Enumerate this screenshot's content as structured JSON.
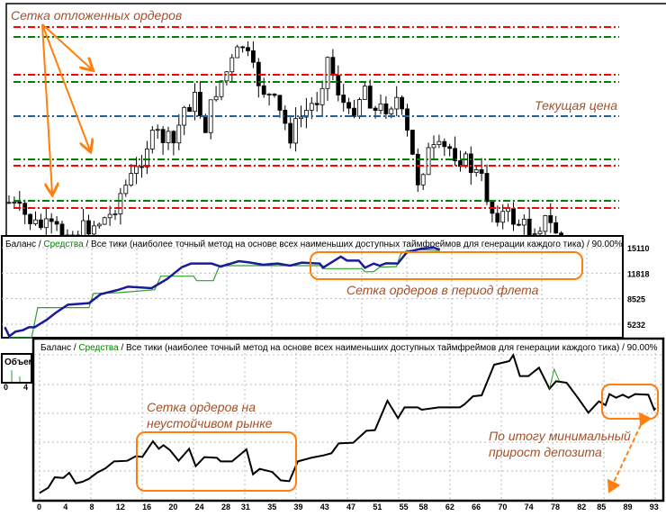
{
  "chart_data": [
    {
      "type": "candlestick",
      "title": "",
      "annotations": {
        "grid_label": "Сетка отложенных ордеров",
        "current_price_label": "Текущая цена"
      },
      "order_levels": [
        {
          "type": "sell",
          "level": 270,
          "color": "#ff0000"
        },
        {
          "type": "buy",
          "level": 259,
          "color": "#008000"
        },
        {
          "type": "sell",
          "level": 217,
          "color": "#ff0000"
        },
        {
          "type": "buy",
          "level": 209,
          "color": "#008000"
        },
        {
          "type": "current",
          "level": 171,
          "color": "#1f5f9f"
        },
        {
          "type": "buy",
          "level": 123,
          "color": "#008000"
        },
        {
          "type": "sell",
          "level": 116,
          "color": "#ff0000"
        },
        {
          "type": "buy",
          "level": 77,
          "color": "#008000"
        },
        {
          "type": "sell",
          "level": 69,
          "color": "#ff0000"
        }
      ],
      "price_path": [
        [
          0,
          75
        ],
        [
          5,
          50
        ],
        [
          12,
          40
        ],
        [
          19,
          60
        ],
        [
          21,
          85
        ],
        [
          24,
          110
        ],
        [
          26,
          140
        ],
        [
          28,
          150
        ],
        [
          31,
          140
        ],
        [
          33,
          180
        ],
        [
          35,
          190
        ],
        [
          37,
          160
        ],
        [
          39,
          200
        ],
        [
          42,
          230
        ],
        [
          44,
          250
        ],
        [
          46,
          220
        ],
        [
          48,
          200
        ],
        [
          50,
          185
        ],
        [
          53,
          150
        ],
        [
          55,
          170
        ],
        [
          58,
          190
        ],
        [
          60,
          235
        ],
        [
          62,
          200
        ],
        [
          64,
          170
        ],
        [
          67,
          205
        ],
        [
          69,
          175
        ],
        [
          73,
          190
        ],
        [
          75,
          150
        ],
        [
          77,
          100
        ],
        [
          79,
          130
        ],
        [
          83,
          135
        ],
        [
          86,
          120
        ],
        [
          89,
          100
        ],
        [
          91,
          65
        ],
        [
          94,
          60
        ],
        [
          98,
          45
        ],
        [
          101,
          55
        ],
        [
          104,
          38
        ]
      ]
    },
    {
      "type": "line",
      "header": {
        "balance": "Баланс",
        "sep1": " / ",
        "equity": "Средства",
        "rest": " / Все тики (наиболее точный метод на основе всех наименьших доступных таймфреймов для генерации каждого тика) / 90.00%"
      },
      "annotation": "Сетка ордеров в период флета",
      "y_ticks": [
        "15110",
        "11818",
        "8525",
        "5232"
      ],
      "y_tick_values": [
        15110,
        11818,
        8525,
        5232
      ],
      "ylim": [
        3300,
        15600
      ],
      "xlim": [
        0,
        100
      ],
      "series": [
        {
          "name": "Баланс",
          "color": "#1a1a9a",
          "points": [
            [
              0.7,
              4844
            ],
            [
              1.7,
              3682
            ],
            [
              3.1,
              4263
            ],
            [
              4.8,
              4457
            ],
            [
              6.2,
              4844
            ],
            [
              7.5,
              4844
            ],
            [
              10.3,
              5812
            ],
            [
              12.3,
              6703
            ],
            [
              15.1,
              7750
            ],
            [
              19.9,
              7943
            ],
            [
              22.6,
              9105
            ],
            [
              26.7,
              9686
            ],
            [
              28.8,
              10074
            ],
            [
              34.2,
              9880
            ],
            [
              37.7,
              11042
            ],
            [
              41.1,
              12592
            ],
            [
              43.2,
              13057
            ],
            [
              47.9,
              13057
            ],
            [
              50,
              12669
            ],
            [
              54.1,
              13367
            ],
            [
              56.8,
              13173
            ],
            [
              59.6,
              12902
            ],
            [
              63,
              13057
            ],
            [
              65.8,
              12786
            ],
            [
              68.5,
              13173
            ],
            [
              72.6,
              13057
            ],
            [
              73.3,
              12514
            ],
            [
              77.4,
              13948
            ],
            [
              78.8,
              13444
            ],
            [
              81.5,
              13444
            ],
            [
              82.9,
              12514
            ],
            [
              84.9,
              13057
            ],
            [
              86.3,
              12786
            ],
            [
              87.7,
              13096
            ],
            [
              90.4,
              13057
            ],
            [
              92.5,
              14529
            ],
            [
              95.9,
              14994
            ],
            [
              98.6,
              15110
            ],
            [
              100,
              14839
            ]
          ]
        },
        {
          "name": "Средства",
          "color": "#2ca02c",
          "points": [
            [
              0.7,
              4844
            ],
            [
              1.7,
              3489
            ],
            [
              6.8,
              3489
            ],
            [
              8.2,
              7363
            ],
            [
              19.9,
              7363
            ],
            [
              20.9,
              9183
            ],
            [
              26.7,
              9299
            ],
            [
              34.9,
              9686
            ],
            [
              36.3,
              11430
            ],
            [
              43.8,
              11430
            ],
            [
              44.5,
              10849
            ],
            [
              48.3,
              10849
            ],
            [
              49.7,
              12786
            ],
            [
              73.3,
              12786
            ],
            [
              73.6,
              12398
            ],
            [
              82.2,
              12398
            ],
            [
              82.9,
              12011
            ],
            [
              84.9,
              12011
            ],
            [
              86.3,
              12592
            ],
            [
              90.1,
              12669
            ],
            [
              91.1,
              14335
            ],
            [
              92.5,
              14723
            ],
            [
              95.9,
              14839
            ],
            [
              100,
              14723
            ]
          ]
        }
      ]
    },
    {
      "type": "line",
      "header": {
        "balance": "Баланс",
        "sep1": " / ",
        "equity": "Средства",
        "rest": " / Все тики (наиболее точный метод на основе всех наименьших доступных таймфреймов для генерации каждого тика) / 90.00%"
      },
      "annotations": {
        "unstable_line1": "Сетка ордеров на",
        "unstable_line2": "неустойчивом рынке",
        "result_line1": "По итогу минимальный",
        "result_line2": "прирост депозита"
      },
      "x_ticks": [
        "0",
        "4",
        "8",
        "12",
        "16",
        "20",
        "24",
        "28",
        "31",
        "35",
        "39",
        "43",
        "47",
        "51",
        "55",
        "58",
        "62",
        "66",
        "70",
        "74",
        "78",
        "82",
        "85",
        "89",
        "93"
      ],
      "xlim": [
        0,
        93.5
      ],
      "ylim": [
        0,
        108
      ],
      "series": [
        {
          "name": "Баланс",
          "color": "#000000",
          "points": [
            [
              0,
              11.6
            ],
            [
              1.3,
              15
            ],
            [
              2.3,
              22
            ],
            [
              3.6,
              21.6
            ],
            [
              4.5,
              25
            ],
            [
              5.5,
              18
            ],
            [
              6.5,
              19
            ],
            [
              7.5,
              21
            ],
            [
              8.7,
              25
            ],
            [
              10,
              28
            ],
            [
              11.3,
              32.6
            ],
            [
              13.3,
              33
            ],
            [
              14.6,
              36
            ],
            [
              15.6,
              35.6
            ],
            [
              17.2,
              46
            ],
            [
              18.1,
              41
            ],
            [
              18.8,
              43.4
            ],
            [
              19.8,
              40
            ],
            [
              21.1,
              33
            ],
            [
              22.7,
              41
            ],
            [
              23.7,
              29.4
            ],
            [
              25,
              35.4
            ],
            [
              26.9,
              35
            ],
            [
              27.5,
              32.6
            ],
            [
              29.2,
              32.6
            ],
            [
              31.4,
              40.6
            ],
            [
              32.4,
              24
            ],
            [
              33.4,
              27.6
            ],
            [
              35.3,
              25.6
            ],
            [
              36.6,
              20
            ],
            [
              37.9,
              19.4
            ],
            [
              39.2,
              32.6
            ],
            [
              41.2,
              35
            ],
            [
              43.1,
              36.6
            ],
            [
              44.3,
              38
            ],
            [
              45.4,
              44.6
            ],
            [
              47.6,
              45
            ],
            [
              49.6,
              53
            ],
            [
              50.9,
              53.4
            ],
            [
              52.8,
              73
            ],
            [
              54.4,
              61.4
            ],
            [
              55.4,
              68.6
            ],
            [
              57.4,
              68.6
            ],
            [
              58,
              67
            ],
            [
              60.6,
              68.6
            ],
            [
              63.8,
              68.6
            ],
            [
              64.5,
              70.6
            ],
            [
              65.8,
              76
            ],
            [
              67.1,
              76.6
            ],
            [
              69,
              97
            ],
            [
              71.3,
              99.4
            ],
            [
              71.9,
              103.4
            ],
            [
              72.9,
              89.4
            ],
            [
              74.2,
              89.4
            ],
            [
              75.8,
              95
            ],
            [
              77.4,
              81
            ],
            [
              78.4,
              86
            ],
            [
              80,
              85
            ],
            [
              81.7,
              75
            ],
            [
              83.3,
              65
            ],
            [
              84.9,
              72.6
            ],
            [
              85.9,
              70
            ],
            [
              86.5,
              77.4
            ],
            [
              87.5,
              75
            ],
            [
              88.5,
              77
            ],
            [
              89.4,
              75
            ],
            [
              90.4,
              77.4
            ],
            [
              92.4,
              77
            ],
            [
              93.3,
              67
            ],
            [
              93.5,
              68
            ]
          ]
        },
        {
          "name": "Средства",
          "color": "#2ca02c",
          "points": [
            [
              77.4,
              81
            ],
            [
              78.1,
              94
            ],
            [
              78.9,
              86
            ]
          ]
        }
      ]
    }
  ],
  "volume_panel": {
    "label": "Объем",
    "x_ticks": [
      "0",
      "4"
    ]
  }
}
